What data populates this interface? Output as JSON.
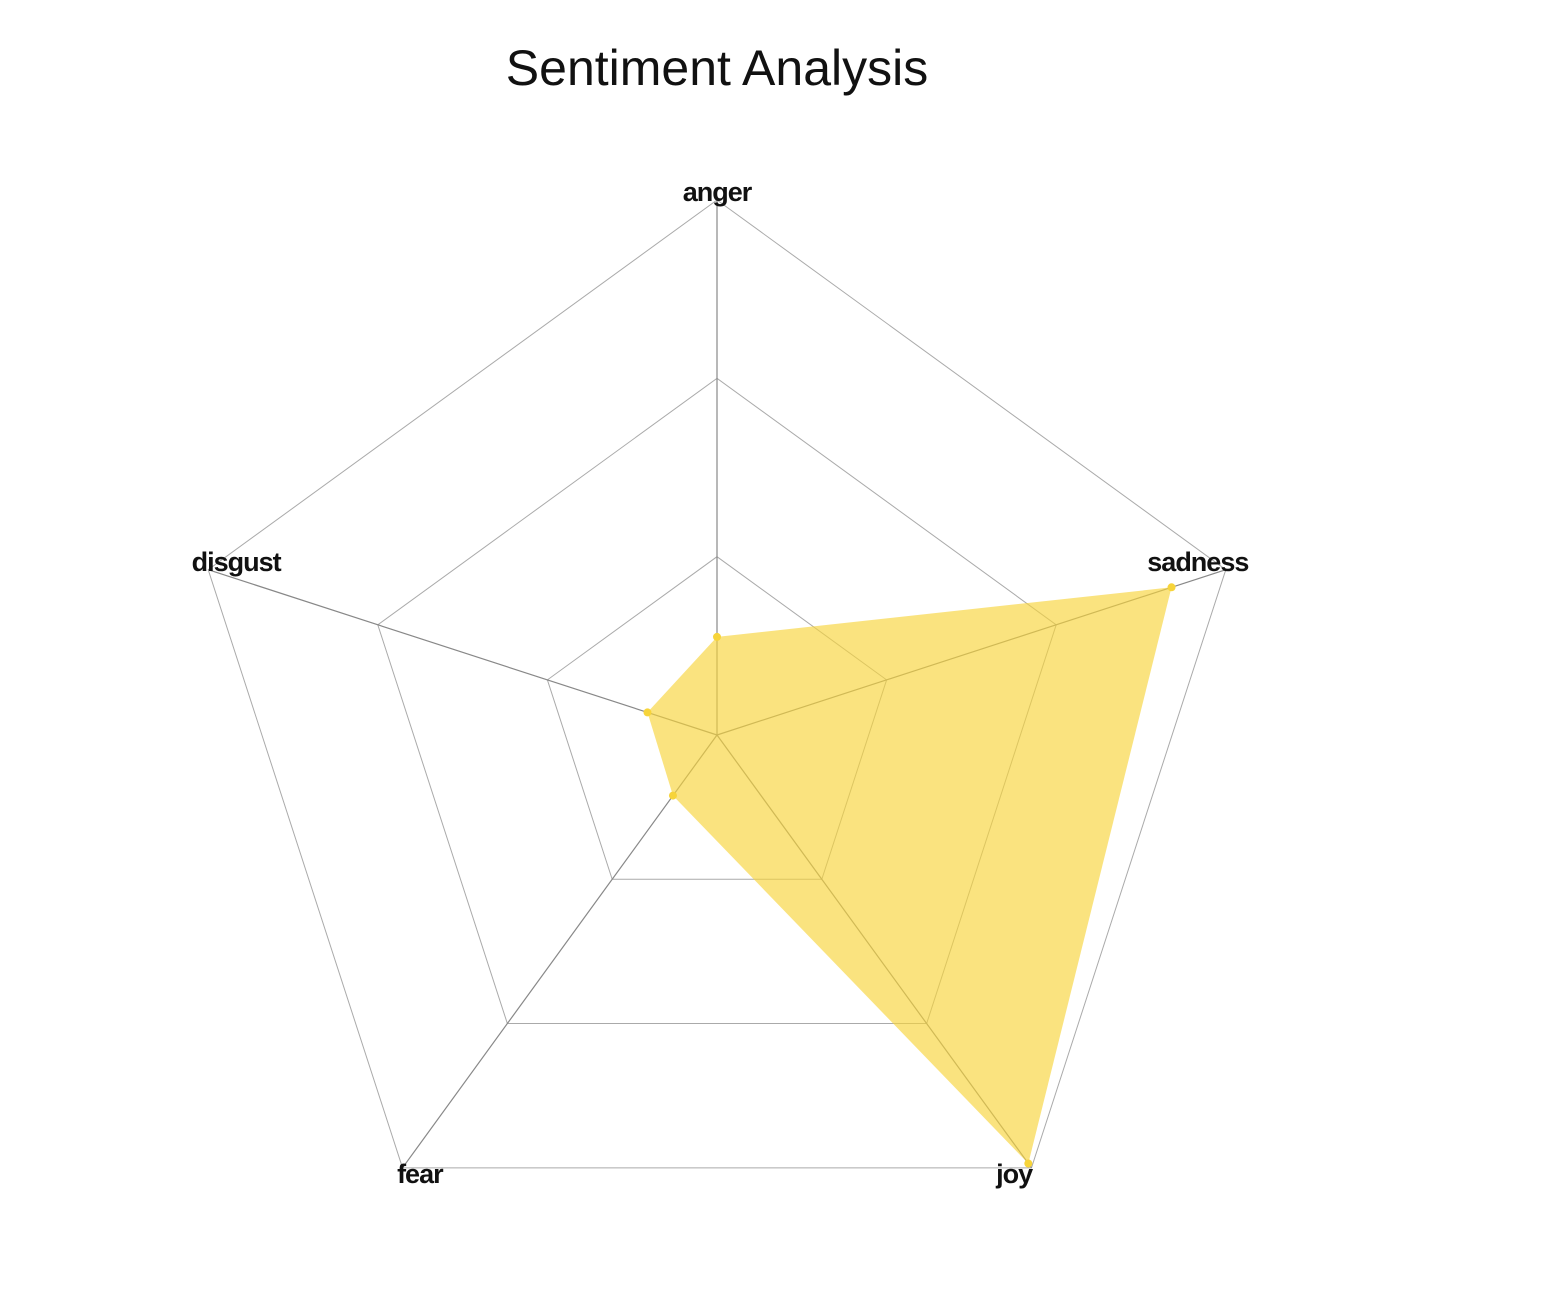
{
  "chart_data": {
    "type": "radar",
    "title": "Sentiment Analysis",
    "categories": [
      "anger",
      "sadness",
      "joy",
      "fear",
      "disgust"
    ],
    "series": [
      {
        "color": "#f7d43a",
        "values": [
          0.55,
          2.68,
          2.97,
          0.42,
          0.41
        ]
      }
    ],
    "rlim": [
      0,
      3
    ],
    "rticks": [
      1,
      2,
      3
    ],
    "grid": true
  }
}
